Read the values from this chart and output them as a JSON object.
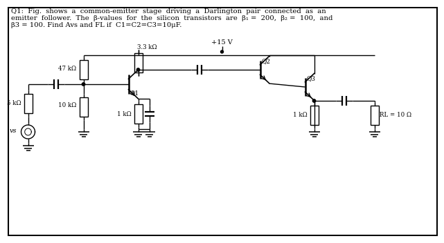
{
  "bg_color": "#ffffff",
  "text_color": "#000000",
  "line_color": "#000000",
  "line1": "Q1:  Fig.  shows  a  common-emitter  stage  driving  a  Darlington  pair  connected  as  an",
  "line2": "emitter  follower.  The  β-values  for  the  silicon  transistors  are  β₁ =  200,  β₂ =  100,  and",
  "line3": "β3 = 100. Find Avs and FL if  C1=C2=C3=10μF.",
  "vcc_label": "+15 V",
  "r47k_label": "47 kΩ",
  "r33k_label": "3.3 kΩ",
  "r5k_label": "5 kΩ",
  "r10k_label": "10 kΩ",
  "r1k_a_label": "1 kΩ",
  "r1k_b_label": "1 kΩ",
  "rl_label": "RL = 10 Ω",
  "q1_label": "Q1",
  "q2_label": "Q2",
  "q3_label": "Q3",
  "vs_label": "vs"
}
